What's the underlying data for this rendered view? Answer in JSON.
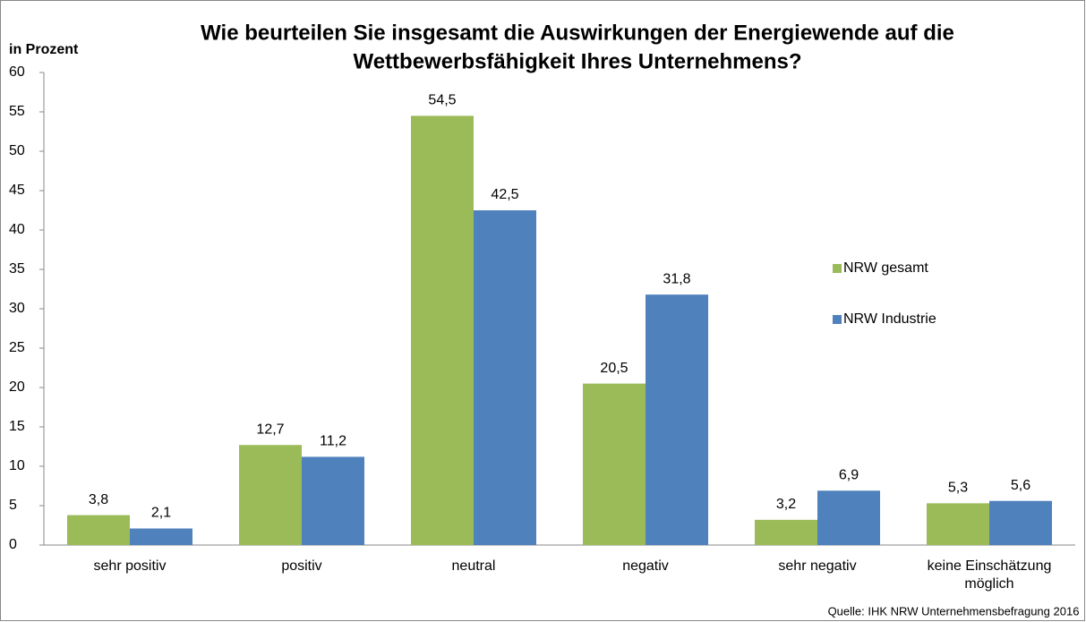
{
  "chart_data": {
    "type": "bar",
    "title": [
      "Wie beurteilen Sie insgesamt die Auswirkungen der Energiewende auf die",
      "Wettbewerbsfähigkeit Ihres Unternehmens?"
    ],
    "y_label": "in Prozent",
    "source": "Quelle:  IHK NRW Unternehmensbefragung  2016",
    "categories": [
      "sehr positiv",
      "positiv",
      "neutral",
      "negativ",
      "sehr negativ",
      "keine Einschätzung möglich"
    ],
    "series": [
      {
        "name": "NRW gesamt",
        "color": "#9bbb59",
        "values": [
          3.8,
          12.7,
          54.5,
          20.5,
          3.2,
          5.3
        ],
        "value_labels": [
          "3,8",
          "12,7",
          "54,5",
          "20,5",
          "3,2",
          "5,3"
        ]
      },
      {
        "name": "NRW Industrie",
        "color": "#4f81bd",
        "values": [
          2.1,
          11.2,
          42.5,
          31.8,
          6.9,
          5.6
        ],
        "value_labels": [
          "2,1",
          "11,2",
          "42,5",
          "31,8",
          "6,9",
          "5,6"
        ]
      }
    ],
    "ylim": [
      0,
      60
    ],
    "yticks": [
      0,
      5,
      10,
      15,
      20,
      25,
      30,
      35,
      40,
      45,
      50,
      55,
      60
    ],
    "grid": false,
    "legend": "right"
  }
}
